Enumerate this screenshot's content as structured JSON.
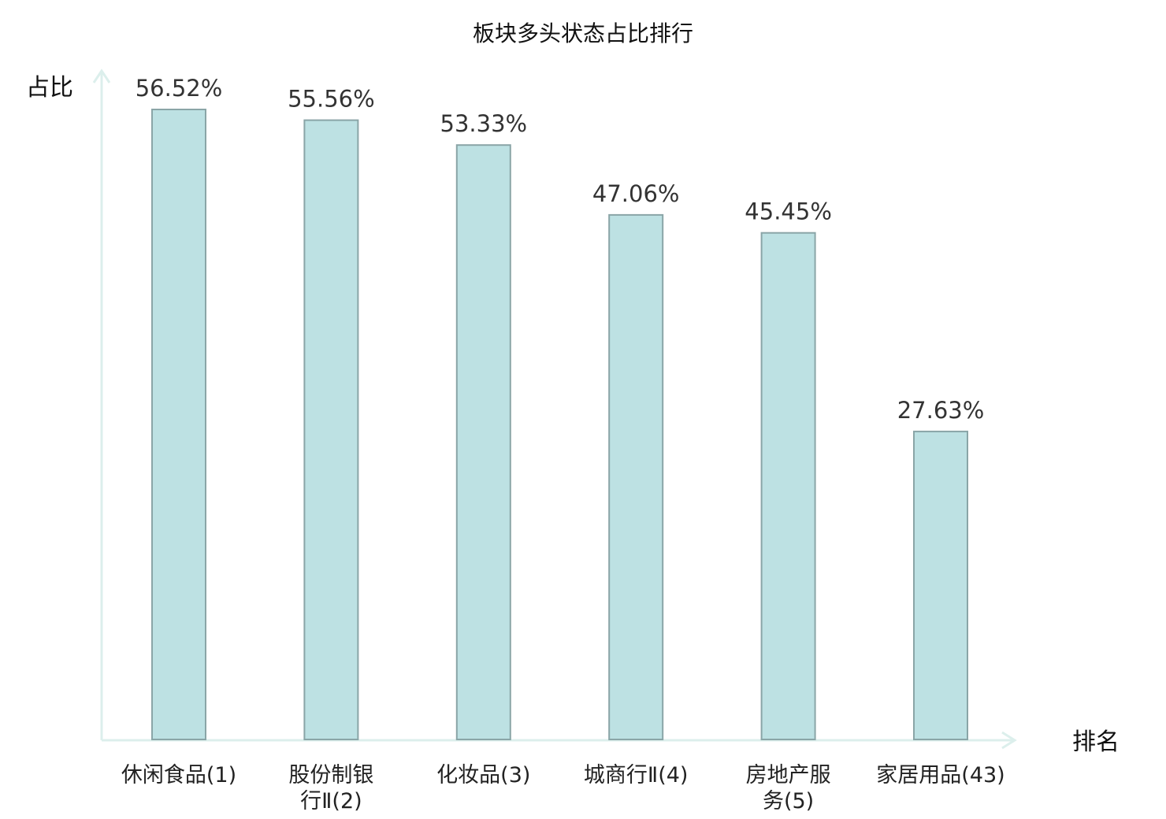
{
  "chart_data": {
    "type": "bar",
    "title": "板块多头状态占比排行",
    "ylabel": "占比",
    "xlabel": "排名",
    "unit": "%",
    "categories": [
      [
        "休闲食品(1)"
      ],
      [
        "股份制银",
        "行Ⅱ(2)"
      ],
      [
        "化妆品(3)"
      ],
      [
        "城商行Ⅱ(4)"
      ],
      [
        "房地产服",
        "务(5)"
      ],
      [
        "家居用品(43)"
      ]
    ],
    "values": [
      56.52,
      55.56,
      53.33,
      47.06,
      45.45,
      27.63
    ],
    "highlight_index": 5,
    "ylim": [
      0,
      60
    ],
    "grid": false,
    "legend": "none"
  },
  "colors": {
    "bar_fill": "#bde1e3",
    "bar_stroke": "#8aa5a7",
    "axis": "#dcefec",
    "highlight_text": "#d42020",
    "normal_text": "#222222",
    "value_text": "#333333"
  }
}
